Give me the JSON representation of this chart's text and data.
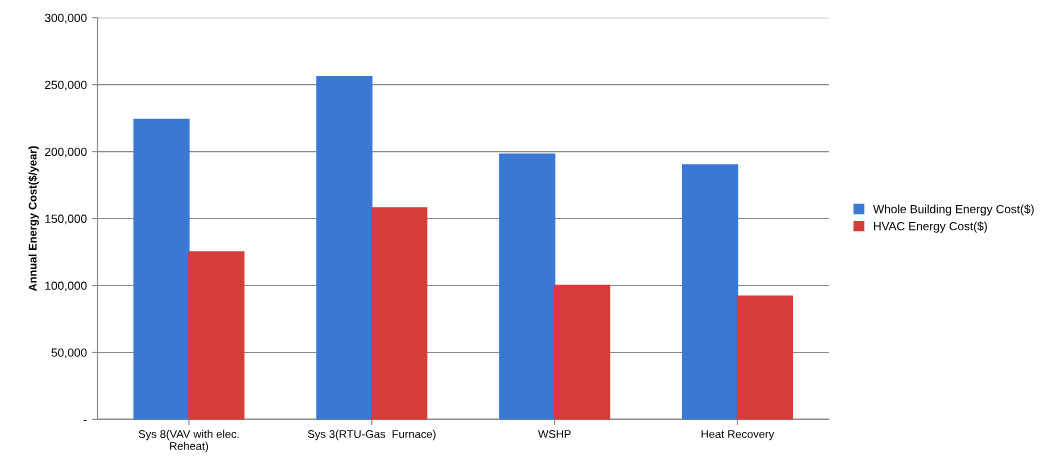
{
  "chart_data": {
    "type": "bar",
    "ylabel": "Annual Energy Cost($/year)",
    "categories": [
      "Sys 8(VAV with elec.\nReheat)",
      "Sys 3(RTU-Gas  Furnace)",
      "WSHP",
      "Heat Recovery"
    ],
    "series": [
      {
        "name": "Whole Building Energy Cost($)",
        "color": "#3a78d4",
        "values": [
          224000,
          256000,
          198000,
          190000
        ]
      },
      {
        "name": "HVAC Energy Cost($)",
        "color": "#d63d3a",
        "values": [
          125000,
          158000,
          100000,
          92000
        ]
      }
    ],
    "ylim": [
      0,
      300000
    ],
    "yticks": [
      {
        "value": 0,
        "label": "-"
      },
      {
        "value": 50000,
        "label": "50,000"
      },
      {
        "value": 100000,
        "label": "100,000"
      },
      {
        "value": 150000,
        "label": "150,000"
      },
      {
        "value": 200000,
        "label": "200,000"
      },
      {
        "value": 250000,
        "label": "250,000"
      },
      {
        "value": 300000,
        "label": "300,000"
      }
    ],
    "grid": "y",
    "legend": "right"
  }
}
